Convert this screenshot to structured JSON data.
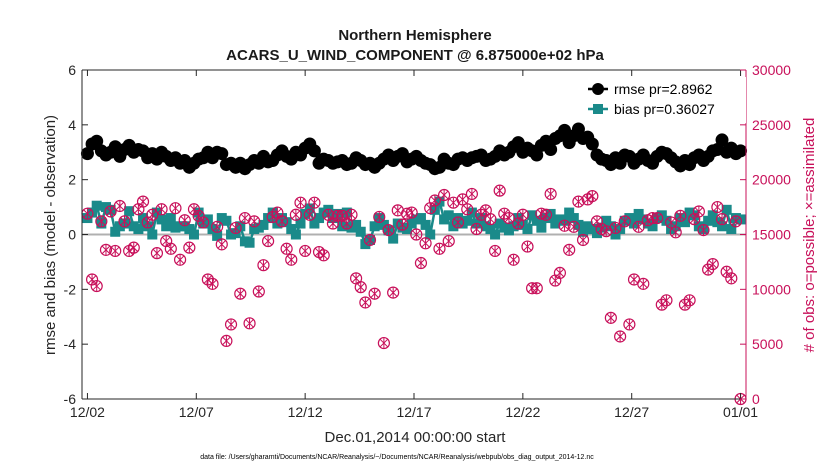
{
  "chart_data": {
    "type": "line",
    "title": "Northern Hemisphere",
    "subtitle": "ACARS_U_WIND_COMPONENT @ 6.875000e+02 hPa",
    "xlabel": "Dec.01,2014 00:00:00 start",
    "ylabel_left": "rmse and bias (model - observation)",
    "ylabel_right": "# of obs: o=possible; ×=assimilated",
    "x_ticks": [
      "12/02",
      "12/07",
      "12/12",
      "12/17",
      "12/22",
      "12/27",
      "01/01"
    ],
    "x_tick_days": [
      1,
      6,
      11,
      16,
      21,
      26,
      31
    ],
    "x_range_days": [
      0.75,
      31.25
    ],
    "y_left_ticks": [
      "-6",
      "-4",
      "-2",
      "0",
      "2",
      "4",
      "6"
    ],
    "y_left_tick_values": [
      -6,
      -4,
      -2,
      0,
      2,
      4,
      6
    ],
    "y_left_range": [
      -6,
      6
    ],
    "y_right_ticks": [
      "0",
      "5000",
      "10000",
      "15000",
      "20000",
      "25000",
      "30000"
    ],
    "y_right_tick_values": [
      0,
      5000,
      10000,
      15000,
      20000,
      25000,
      30000
    ],
    "y_right_range": [
      0,
      30000
    ],
    "series": [
      {
        "name": "rmse pr=2.8962",
        "color": "#000000",
        "marker": "circle",
        "values": [
          2.95,
          3.3,
          3.4,
          3.05,
          2.9,
          3.0,
          3.2,
          2.85,
          3.1,
          3.25,
          3.0,
          3.1,
          3.05,
          2.8,
          2.95,
          2.75,
          3.0,
          2.85,
          2.7,
          2.8,
          2.6,
          2.7,
          2.45,
          2.6,
          2.75,
          2.8,
          3.0,
          2.8,
          3.0,
          2.95,
          2.55,
          2.6,
          2.45,
          2.6,
          2.4,
          2.55,
          2.7,
          2.6,
          2.85,
          2.65,
          2.7,
          2.9,
          3.05,
          2.85,
          2.75,
          3.0,
          2.9,
          3.15,
          3.3,
          3.05,
          2.6,
          2.75,
          2.7,
          2.6,
          2.65,
          2.7,
          2.55,
          2.6,
          2.8,
          2.7,
          2.55,
          2.6,
          2.45,
          2.6,
          2.75,
          2.9,
          2.7,
          2.85,
          2.95,
          2.65,
          2.75,
          2.85,
          2.7,
          2.6,
          2.55,
          2.4,
          2.45,
          2.75,
          2.6,
          2.55,
          2.75,
          2.8,
          2.7,
          2.8,
          2.85,
          2.9,
          2.7,
          2.75,
          2.85,
          3.05,
          2.9,
          3.0,
          3.2,
          3.35,
          3.0,
          3.15,
          3.05,
          2.9,
          3.25,
          3.4,
          3.1,
          3.5,
          3.6,
          3.8,
          3.35,
          3.6,
          3.85,
          3.5,
          3.55,
          3.3,
          2.9,
          2.75,
          2.7,
          2.55,
          2.8,
          2.6,
          2.9,
          2.85,
          2.6,
          2.75,
          2.9,
          2.7,
          2.6,
          2.85,
          3.0,
          2.95,
          2.8,
          2.65,
          2.5,
          2.7,
          2.55,
          2.8,
          2.9,
          2.7,
          2.85,
          3.05,
          3.1,
          3.45,
          3.0,
          3.15,
          2.95,
          3.05
        ]
      },
      {
        "name": "bias pr=0.36027",
        "color": "#1a8a8a",
        "marker": "square",
        "values": [
          0.6,
          0.8,
          1.05,
          0.4,
          1.0,
          0.9,
          0.1,
          0.3,
          0.4,
          0.85,
          0.3,
          0.2,
          0.6,
          0.3,
          0.0,
          0.8,
          0.55,
          0.3,
          0.6,
          0.25,
          0.3,
          0.3,
          0.2,
          0.0,
          0.8,
          0.4,
          0.55,
          0.2,
          -0.05,
          0.6,
          0.5,
          0.0,
          0.05,
          0.3,
          -0.25,
          -0.3,
          0.2,
          0.25,
          0.35,
          0.6,
          0.8,
          0.4,
          0.6,
          0.45,
          0.2,
          0.0,
          0.4,
          0.75,
          0.95,
          0.4,
          0.6,
          0.8,
          0.9,
          0.6,
          0.75,
          0.3,
          0.8,
          0.25,
          0.35,
          0.1,
          -0.35,
          -0.2,
          0.3,
          0.6,
          0.35,
          0.15,
          -0.15,
          0.4,
          0.25,
          0.2,
          0.4,
          0.55,
          0.6,
          0.35,
          0.0,
          0.9,
          1.2,
          0.55,
          0.7,
          0.3,
          0.6,
          0.4,
          0.5,
          0.8,
          0.4,
          0.6,
          0.3,
          0.2,
          0.0,
          0.4,
          0.25,
          0.15,
          0.3,
          0.6,
          0.35,
          0.2,
          0.7,
          0.5,
          0.25,
          0.6,
          0.75,
          0.4,
          0.55,
          0.5,
          0.8,
          0.6,
          0.35,
          0.1,
          0.3,
          0.2,
          0.05,
          0.25,
          0.5,
          0.3,
          0.0,
          0.2,
          0.5,
          0.6,
          0.4,
          0.75,
          0.55,
          0.4,
          0.3,
          0.6,
          0.7,
          0.5,
          0.2,
          0.3,
          0.6,
          0.45,
          0.8,
          0.7,
          0.3,
          0.2,
          0.5,
          0.7,
          0.45,
          0.3,
          0.9,
          0.2,
          0.6,
          0.55
        ]
      }
    ],
    "obs_count": {
      "color": "#c8105a",
      "marker": "circle-with-x",
      "axis": "right",
      "values": [
        16900,
        10900,
        10300,
        16200,
        13600,
        17100,
        13500,
        17600,
        16200,
        13500,
        13800,
        17300,
        18000,
        16100,
        16800,
        13300,
        17300,
        14400,
        13700,
        17400,
        12700,
        16300,
        13800,
        17300,
        16700,
        16100,
        10900,
        10500,
        15700,
        14100,
        5300,
        6800,
        15600,
        9600,
        16500,
        6900,
        16200,
        9800,
        12200,
        14400,
        16600,
        17000,
        16200,
        13700,
        12700,
        16800,
        17900,
        13500,
        16800,
        17900,
        13400,
        13100,
        16800,
        16000,
        16700,
        16700,
        16000,
        16800,
        11000,
        10200,
        8800,
        14500,
        9600,
        16600,
        5100,
        15400,
        9700,
        17200,
        15900,
        16900,
        17000,
        15000,
        12400,
        14200,
        17400,
        18100,
        13700,
        18600,
        14400,
        17900,
        16100,
        18200,
        17300,
        18700,
        15500,
        16800,
        17200,
        16400,
        13500,
        19000,
        16900,
        16500,
        12700,
        16000,
        16800,
        13900,
        10100,
        10100,
        16900,
        16800,
        18700,
        10800,
        11500,
        15800,
        13600,
        15700,
        18000,
        14500,
        18200,
        18500,
        16200,
        15500,
        15300,
        7400,
        15600,
        5700,
        16200,
        6800,
        10900,
        15700,
        10500,
        16300,
        16500,
        16500,
        8600,
        9000,
        16100,
        15200,
        16700,
        8600,
        9000,
        16400,
        17100,
        15400,
        11800,
        12300,
        17500,
        16400,
        11600,
        11000,
        16200,
        0
      ]
    }
  },
  "footer": "data file: /Users/gharamti/Documents/NCAR/Reanalysis/~/Documents/NCAR/Reanalysis/webpub/obs_diag_output_2014-12.nc"
}
